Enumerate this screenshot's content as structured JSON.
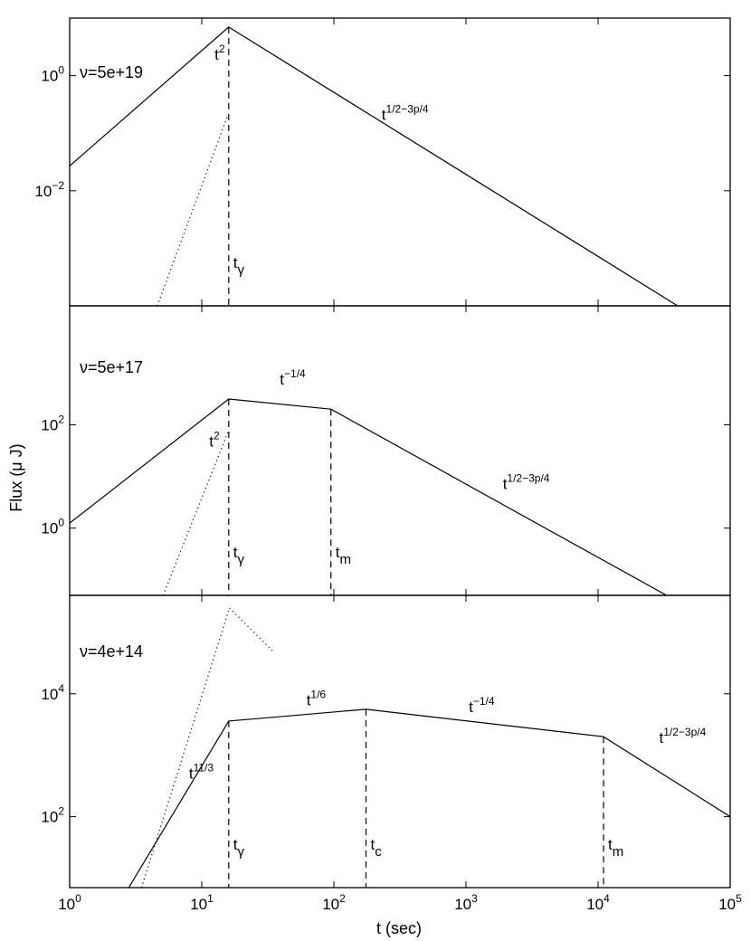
{
  "chart_data": {
    "type": "line",
    "xlabel": "t (sec)",
    "ylabel": "Flux (μ J)",
    "xscale": "log",
    "yscale": "log",
    "xlim": [
      1,
      100000
    ],
    "x_ticks": [
      {
        "value": 1,
        "base": "10",
        "exp": "0"
      },
      {
        "value": 10,
        "base": "10",
        "exp": "1"
      },
      {
        "value": 100,
        "base": "10",
        "exp": "2"
      },
      {
        "value": 1000,
        "base": "10",
        "exp": "3"
      },
      {
        "value": 10000,
        "base": "10",
        "exp": "4"
      },
      {
        "value": 100000,
        "base": "10",
        "exp": "5"
      }
    ],
    "panels": [
      {
        "id": "top",
        "nu_label": "ν=5e+19",
        "ylim": [
          0.0001,
          10
        ],
        "y_ticks": [
          {
            "value": 1,
            "base": "10",
            "exp": "0"
          },
          {
            "value": 0.01,
            "base": "10",
            "exp": "−2"
          }
        ],
        "series": [
          {
            "style": "solid",
            "points": [
              [
                1,
                0.027
              ],
              [
                16,
                7.0
              ],
              [
                40000,
                0.0001
              ]
            ]
          },
          {
            "style": "dotted",
            "points": [
              [
                4.6,
                0.0001
              ],
              [
                15.8,
                0.21
              ]
            ]
          }
        ],
        "markers": [
          {
            "x": 16,
            "y_top": 7.0,
            "base": "t",
            "sub": "γ"
          }
        ],
        "annotations": [
          {
            "x": 12.5,
            "y": 1.9,
            "base": "t",
            "sup": "2"
          },
          {
            "x": 230,
            "y": 0.17,
            "base": "t",
            "sup": "1/2−3p/4"
          }
        ]
      },
      {
        "id": "middle",
        "nu_label": "ν=5e+17",
        "ylim": [
          0.05,
          20000
        ],
        "y_ticks": [
          {
            "value": 100,
            "base": "10",
            "exp": "2"
          },
          {
            "value": 1,
            "base": "10",
            "exp": "0"
          }
        ],
        "series": [
          {
            "style": "solid",
            "points": [
              [
                1,
                1.25
              ],
              [
                16,
                315
              ],
              [
                95,
                200
              ],
              [
                33000,
                0.05
              ]
            ]
          },
          {
            "style": "dotted",
            "points": [
              [
                5.1,
                0.05
              ],
              [
                15.8,
                72
              ]
            ]
          }
        ],
        "markers": [
          {
            "x": 16,
            "y_top": 315,
            "base": "t",
            "sub": "γ"
          },
          {
            "x": 95,
            "y_top": 200,
            "base": "t",
            "sub": "m"
          }
        ],
        "annotations": [
          {
            "x": 39,
            "y": 600,
            "base": "t",
            "sup": "−1/4"
          },
          {
            "x": 11.4,
            "y": 38,
            "base": "t",
            "sup": "2"
          },
          {
            "x": 1900,
            "y": 5.7,
            "base": "t",
            "sup": "1/2−3p/4"
          }
        ]
      },
      {
        "id": "bottom",
        "nu_label": "ν=4e+14",
        "ylim": [
          7,
          400000
        ],
        "y_ticks": [
          {
            "value": 10000,
            "base": "10",
            "exp": "4"
          },
          {
            "value": 100,
            "base": "10",
            "exp": "2"
          }
        ],
        "series": [
          {
            "style": "solid",
            "points": [
              [
                2.8,
                7
              ],
              [
                16,
                3600
              ],
              [
                175,
                5600
              ],
              [
                11000,
                2000
              ],
              [
                100000,
                100
              ]
            ]
          },
          {
            "style": "dotted",
            "points": [
              [
                3.5,
                7
              ],
              [
                16.2,
                250000
              ]
            ]
          },
          {
            "style": "dotted",
            "points": [
              [
                16.2,
                250000
              ],
              [
                35,
                48000
              ]
            ]
          }
        ],
        "markers": [
          {
            "x": 16,
            "y_top": 3600,
            "base": "t",
            "sub": "γ"
          },
          {
            "x": 175,
            "y_top": 5600,
            "base": "t",
            "sub": "c"
          },
          {
            "x": 11000,
            "y_top": 2000,
            "base": "t",
            "sub": "m"
          }
        ],
        "annotations": [
          {
            "x": 62,
            "y": 6500,
            "base": "t",
            "sup": "1/6"
          },
          {
            "x": 1050,
            "y": 5000,
            "base": "t",
            "sup": "−1/4"
          },
          {
            "x": 8,
            "y": 420,
            "base": "t",
            "sup": "11/3"
          },
          {
            "x": 29000,
            "y": 1600,
            "base": "t",
            "sup": "1/2−3p/4"
          }
        ]
      }
    ]
  }
}
